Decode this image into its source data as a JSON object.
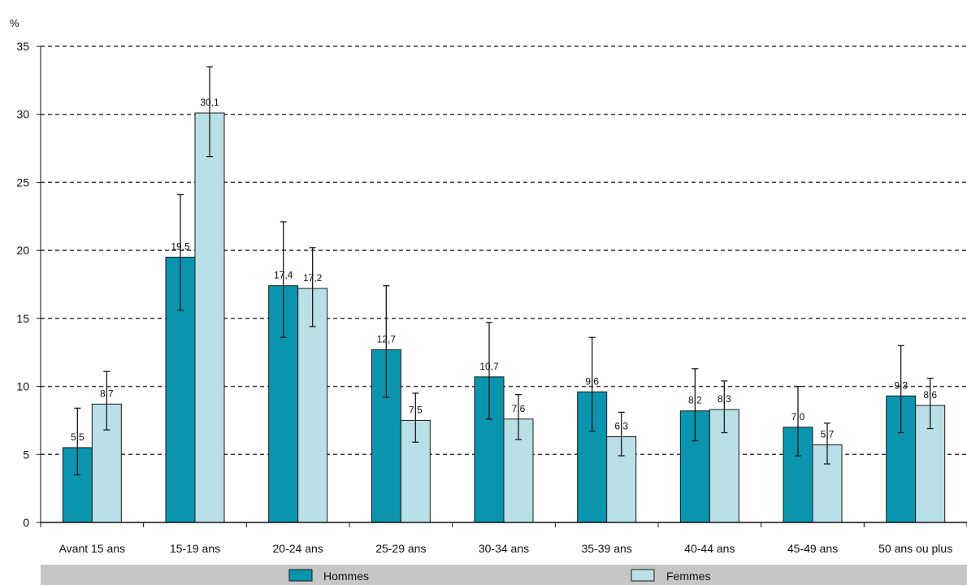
{
  "chart_data": {
    "type": "bar",
    "unit_label": "%",
    "ylim": [
      0,
      35
    ],
    "yticks": [
      0,
      5,
      10,
      15,
      20,
      25,
      30,
      35
    ],
    "grid": true,
    "legend_position": "bottom",
    "categories": [
      "Avant 15 ans",
      "15-19 ans",
      "20-24 ans",
      "25-29 ans",
      "30-34 ans",
      "35-39 ans",
      "40-44 ans",
      "45-49 ans",
      "50 ans ou plus"
    ],
    "series": [
      {
        "name": "Hommes",
        "color": "#0a94ae",
        "values": [
          5.5,
          19.5,
          17.4,
          12.7,
          10.7,
          9.6,
          8.2,
          7.0,
          9.3
        ],
        "labels": [
          "5,5",
          "19,5",
          "17,4",
          "12,7",
          "10,7",
          "9,6",
          "8,2",
          "7,0",
          "9,3"
        ],
        "err_low": [
          3.5,
          15.6,
          13.6,
          9.2,
          7.6,
          6.7,
          6.0,
          4.9,
          6.6
        ],
        "err_high": [
          8.4,
          24.1,
          22.1,
          17.4,
          14.7,
          13.6,
          11.3,
          10.0,
          13.0
        ]
      },
      {
        "name": "Femmes",
        "color": "#b8e0e6",
        "values": [
          8.7,
          30.1,
          17.2,
          7.5,
          7.6,
          6.3,
          8.3,
          5.7,
          8.6
        ],
        "labels": [
          "8,7",
          "30,1",
          "17,2",
          "7,5",
          "7,6",
          "6,3",
          "8,3",
          "5,7",
          "8,6"
        ],
        "err_low": [
          6.8,
          26.9,
          14.4,
          5.9,
          6.1,
          4.9,
          6.6,
          4.3,
          6.9
        ],
        "err_high": [
          11.1,
          33.5,
          20.2,
          9.5,
          9.4,
          8.1,
          10.4,
          7.3,
          10.6
        ]
      }
    ]
  },
  "legend": {
    "hommes": "Hommes",
    "femmes": "Femmes"
  }
}
